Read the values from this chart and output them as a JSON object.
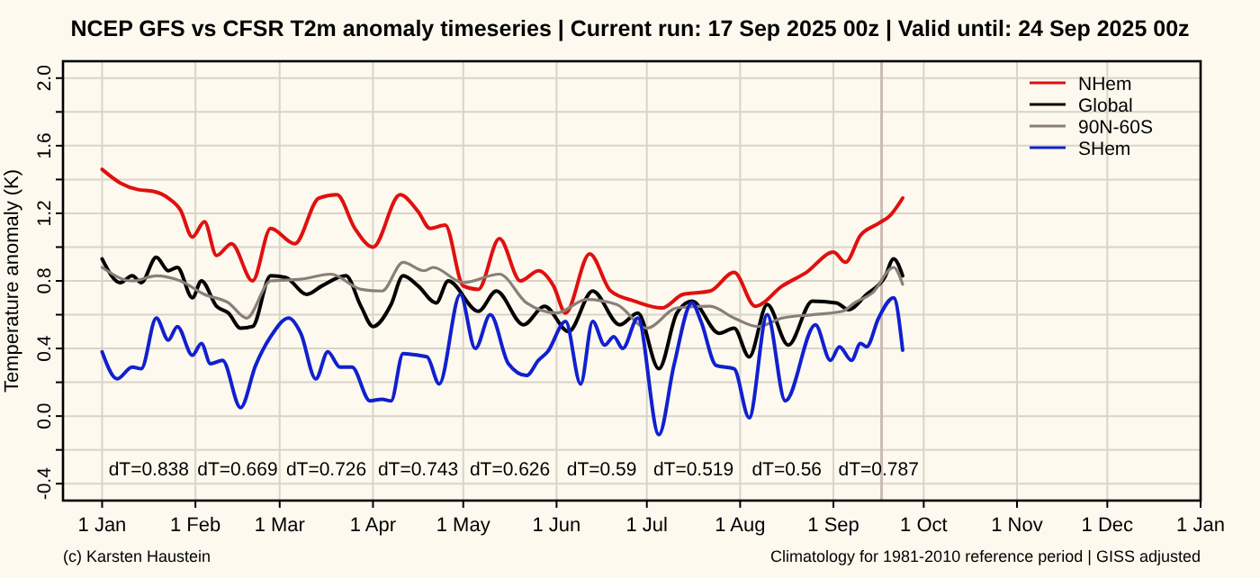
{
  "chart_data": {
    "type": "line",
    "title": "NCEP GFS vs CFSR T2m anomaly timeseries | Current run: 17 Sep 2025 00z | Valid until: 24 Sep 2025 00z",
    "ylabel": "Temperature anomaly (K)",
    "xlim": [
      "2024-12-19",
      "2026-01-01"
    ],
    "xticks": [
      {
        "value": "2025-01-01",
        "label": "1 Jan"
      },
      {
        "value": "2025-02-01",
        "label": "1 Feb"
      },
      {
        "value": "2025-03-01",
        "label": "1 Mar"
      },
      {
        "value": "2025-04-01",
        "label": "1 Apr"
      },
      {
        "value": "2025-05-01",
        "label": "1 May"
      },
      {
        "value": "2025-06-01",
        "label": "1 Jun"
      },
      {
        "value": "2025-07-01",
        "label": "1 Jul"
      },
      {
        "value": "2025-08-01",
        "label": "1 Aug"
      },
      {
        "value": "2025-09-01",
        "label": "1 Sep"
      },
      {
        "value": "2025-10-01",
        "label": "1 Oct"
      },
      {
        "value": "2025-11-01",
        "label": "1 Nov"
      },
      {
        "value": "2025-12-01",
        "label": "1 Dec"
      },
      {
        "value": "2026-01-01",
        "label": "1 Jan"
      }
    ],
    "ylim": [
      -0.5,
      2.1
    ],
    "yticks": [
      {
        "value": -0.4,
        "label": "-0.4"
      },
      {
        "value": -0.2,
        "label": null
      },
      {
        "value": 0,
        "label": "0.0"
      },
      {
        "value": 0.2,
        "label": null
      },
      {
        "value": 0.4,
        "label": "0.4"
      },
      {
        "value": 0.6,
        "label": null
      },
      {
        "value": 0.8,
        "label": "0.8"
      },
      {
        "value": 1.0,
        "label": null
      },
      {
        "value": 1.2,
        "label": "1.2"
      },
      {
        "value": 1.4,
        "label": null
      },
      {
        "value": 1.6,
        "label": "1.6"
      },
      {
        "value": 1.8,
        "label": null
      },
      {
        "value": 2.0,
        "label": "2.0"
      }
    ],
    "grid": true,
    "legend": "top right",
    "marker": "none",
    "line_style": "solid",
    "ref_lines": [
      {
        "axis": "x",
        "value": "2025-09-17",
        "color": "#cbbcb4"
      }
    ],
    "annotations": [
      "dT=0.838",
      "dT=0.669",
      "dT=0.726",
      "dT=0.743",
      "dT=0.626",
      "dT=0.59",
      "dT=0.519",
      "dT=0.56",
      "dT=0.787",
      "(c) Karsten Haustein",
      "Climatology for 1981-2010 reference period | GISS adjusted"
    ],
    "series": [
      {
        "name": "NHem",
        "color": "#e01010",
        "x": [
          "2025-01-01",
          "2025-01-07",
          "2025-01-13",
          "2025-01-18",
          "2025-01-23",
          "2025-01-27",
          "2025-01-31",
          "2025-02-04",
          "2025-02-08",
          "2025-02-13",
          "2025-02-20",
          "2025-02-26",
          "2025-03-06",
          "2025-03-14",
          "2025-03-20",
          "2025-03-26",
          "2025-04-01",
          "2025-04-10",
          "2025-04-16",
          "2025-04-20",
          "2025-04-25",
          "2025-05-01",
          "2025-05-06",
          "2025-05-13",
          "2025-05-20",
          "2025-05-26",
          "2025-05-31",
          "2025-06-04",
          "2025-06-12",
          "2025-06-19",
          "2025-06-27",
          "2025-07-06",
          "2025-07-13",
          "2025-07-22",
          "2025-07-30",
          "2025-08-06",
          "2025-08-15",
          "2025-08-23",
          "2025-09-01",
          "2025-09-05",
          "2025-09-10",
          "2025-09-16",
          "2025-09-20",
          "2025-09-24"
        ],
        "values": [
          1.46,
          1.38,
          1.34,
          1.33,
          1.29,
          1.22,
          1.06,
          1.15,
          0.95,
          1.02,
          0.8,
          1.11,
          1.02,
          1.29,
          1.31,
          1.11,
          1.0,
          1.31,
          1.21,
          1.11,
          1.13,
          0.77,
          0.75,
          1.05,
          0.8,
          0.86,
          0.77,
          0.61,
          0.96,
          0.74,
          0.68,
          0.64,
          0.72,
          0.74,
          0.85,
          0.65,
          0.77,
          0.85,
          0.97,
          0.91,
          1.07,
          1.14,
          1.19,
          1.29
        ]
      },
      {
        "name": "Global",
        "color": "#000000",
        "x": [
          "2025-01-01",
          "2025-01-07",
          "2025-01-11",
          "2025-01-14",
          "2025-01-19",
          "2025-01-23",
          "2025-01-26",
          "2025-01-31",
          "2025-02-03",
          "2025-02-08",
          "2025-02-12",
          "2025-02-16",
          "2025-02-20",
          "2025-02-26",
          "2025-03-03",
          "2025-03-10",
          "2025-03-15",
          "2025-03-23",
          "2025-03-28",
          "2025-04-01",
          "2025-04-07",
          "2025-04-11",
          "2025-04-16",
          "2025-04-22",
          "2025-04-26",
          "2025-05-06",
          "2025-05-12",
          "2025-05-21",
          "2025-05-28",
          "2025-06-05",
          "2025-06-13",
          "2025-06-22",
          "2025-06-28",
          "2025-07-05",
          "2025-07-11",
          "2025-07-16",
          "2025-07-25",
          "2025-07-30",
          "2025-08-04",
          "2025-08-10",
          "2025-08-17",
          "2025-08-25",
          "2025-09-02",
          "2025-09-06",
          "2025-09-12",
          "2025-09-18",
          "2025-09-21",
          "2025-09-24"
        ],
        "values": [
          0.93,
          0.79,
          0.83,
          0.79,
          0.94,
          0.86,
          0.88,
          0.7,
          0.8,
          0.65,
          0.61,
          0.52,
          0.53,
          0.83,
          0.82,
          0.72,
          0.77,
          0.83,
          0.65,
          0.53,
          0.66,
          0.83,
          0.77,
          0.67,
          0.8,
          0.62,
          0.74,
          0.54,
          0.65,
          0.5,
          0.74,
          0.54,
          0.61,
          0.28,
          0.61,
          0.68,
          0.49,
          0.52,
          0.35,
          0.66,
          0.42,
          0.68,
          0.67,
          0.63,
          0.72,
          0.82,
          0.93,
          0.83
        ]
      },
      {
        "name": "90N-60S",
        "color": "#8a7f78",
        "x": [
          "2025-01-01",
          "2025-01-11",
          "2025-01-19",
          "2025-01-27",
          "2025-02-04",
          "2025-02-12",
          "2025-02-18",
          "2025-02-26",
          "2025-03-08",
          "2025-03-18",
          "2025-03-28",
          "2025-04-04",
          "2025-04-11",
          "2025-04-18",
          "2025-04-21",
          "2025-05-01",
          "2025-05-13",
          "2025-05-22",
          "2025-06-01",
          "2025-06-11",
          "2025-06-21",
          "2025-07-01",
          "2025-07-11",
          "2025-07-22",
          "2025-07-30",
          "2025-08-07",
          "2025-08-15",
          "2025-08-25",
          "2025-09-04",
          "2025-09-08",
          "2025-09-14",
          "2025-09-21",
          "2025-09-24"
        ],
        "values": [
          0.88,
          0.8,
          0.83,
          0.8,
          0.72,
          0.67,
          0.58,
          0.8,
          0.81,
          0.84,
          0.75,
          0.74,
          0.91,
          0.86,
          0.88,
          0.79,
          0.84,
          0.67,
          0.61,
          0.69,
          0.66,
          0.52,
          0.64,
          0.65,
          0.58,
          0.53,
          0.58,
          0.6,
          0.62,
          0.67,
          0.73,
          0.88,
          0.78
        ]
      },
      {
        "name": "SHem",
        "color": "#1020d0",
        "x": [
          "2025-01-01",
          "2025-01-06",
          "2025-01-11",
          "2025-01-14",
          "2025-01-19",
          "2025-01-23",
          "2025-01-26",
          "2025-01-31",
          "2025-02-03",
          "2025-02-06",
          "2025-02-10",
          "2025-02-16",
          "2025-02-21",
          "2025-02-26",
          "2025-03-04",
          "2025-03-08",
          "2025-03-13",
          "2025-03-17",
          "2025-03-21",
          "2025-03-25",
          "2025-03-31",
          "2025-04-04",
          "2025-04-07",
          "2025-04-11",
          "2025-04-16",
          "2025-04-19",
          "2025-04-23",
          "2025-04-30",
          "2025-05-05",
          "2025-05-10",
          "2025-05-16",
          "2025-05-22",
          "2025-05-26",
          "2025-05-29",
          "2025-06-04",
          "2025-06-09",
          "2025-06-13",
          "2025-06-17",
          "2025-06-20",
          "2025-06-23",
          "2025-06-28",
          "2025-07-05",
          "2025-07-10",
          "2025-07-16",
          "2025-07-19",
          "2025-07-24",
          "2025-07-30",
          "2025-08-04",
          "2025-08-10",
          "2025-08-16",
          "2025-08-26",
          "2025-08-31",
          "2025-09-03",
          "2025-09-07",
          "2025-09-10",
          "2025-09-12",
          "2025-09-16",
          "2025-09-21",
          "2025-09-24"
        ],
        "values": [
          0.38,
          0.22,
          0.29,
          0.28,
          0.58,
          0.45,
          0.53,
          0.36,
          0.43,
          0.31,
          0.33,
          0.05,
          0.3,
          0.47,
          0.58,
          0.49,
          0.22,
          0.38,
          0.29,
          0.29,
          0.09,
          0.1,
          0.09,
          0.37,
          0.36,
          0.35,
          0.19,
          0.72,
          0.4,
          0.6,
          0.31,
          0.24,
          0.33,
          0.38,
          0.56,
          0.19,
          0.56,
          0.42,
          0.47,
          0.4,
          0.58,
          -0.11,
          0.3,
          0.67,
          0.56,
          0.3,
          0.28,
          -0.01,
          0.6,
          0.09,
          0.54,
          0.33,
          0.41,
          0.33,
          0.43,
          0.41,
          0.58,
          0.7,
          0.39
        ]
      }
    ]
  }
}
